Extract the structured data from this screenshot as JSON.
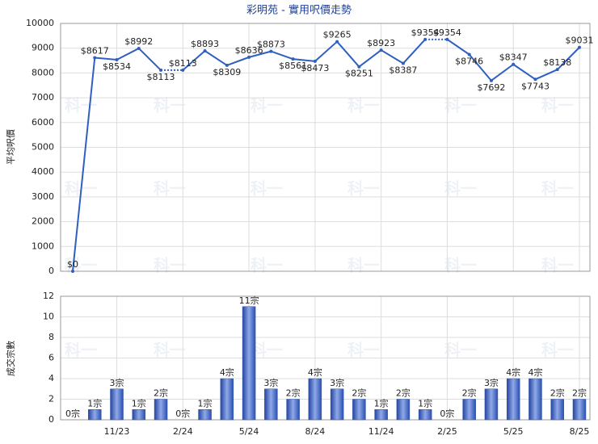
{
  "chart_data": [
    {
      "type": "line",
      "title": "彩明苑 - 實用呎價走勢",
      "watermark": "科一",
      "ylabel": "平均呎價",
      "categories": [
        null,
        null,
        "11/23",
        null,
        null,
        "2/24",
        null,
        null,
        "5/24",
        null,
        null,
        "8/24",
        null,
        null,
        "11/24",
        null,
        null,
        "2/25",
        null,
        null,
        "5/25",
        null,
        null,
        "8/25"
      ],
      "values": [
        0,
        8617,
        8534,
        8992,
        8113,
        8113,
        8893,
        8309,
        8636,
        8873,
        8561,
        8473,
        9265,
        8251,
        8923,
        8387,
        9354,
        9354,
        8746,
        7692,
        8347,
        7743,
        8138,
        9031
      ],
      "value_labels": [
        "$0",
        "$8617",
        "$8534",
        "$8992",
        "$8113",
        "$8113",
        "$8893",
        "$8309",
        "$8636",
        "$8873",
        "$8561",
        "$8473",
        "$9265",
        "$8251",
        "$8923",
        "$8387",
        "$9354",
        "$9354",
        "$8746",
        "$7692",
        "$8347",
        "$7743",
        "$8138",
        "$9031"
      ],
      "color": "#2f5fc0",
      "ylim": [
        0,
        10000
      ],
      "yticks": [
        0,
        1000,
        2000,
        3000,
        4000,
        5000,
        6000,
        7000,
        8000,
        9000,
        10000
      ],
      "grid": true
    },
    {
      "type": "bar",
      "ylabel": "成交宗數",
      "categories": [
        null,
        null,
        "11/23",
        null,
        null,
        "2/24",
        null,
        null,
        "5/24",
        null,
        null,
        "8/24",
        null,
        null,
        "11/24",
        null,
        null,
        "2/25",
        null,
        null,
        "5/25",
        null,
        null,
        "8/25"
      ],
      "values": [
        0,
        1,
        3,
        1,
        2,
        0,
        1,
        4,
        11,
        3,
        2,
        4,
        3,
        2,
        1,
        2,
        1,
        0,
        2,
        3,
        4,
        4,
        2,
        2
      ],
      "value_labels": [
        "0宗",
        "1宗",
        "3宗",
        "1宗",
        "2宗",
        "0宗",
        "1宗",
        "4宗",
        "11宗",
        "3宗",
        "2宗",
        "4宗",
        "3宗",
        "2宗",
        "1宗",
        "2宗",
        "1宗",
        "0宗",
        "2宗",
        "3宗",
        "4宗",
        "4宗",
        "2宗",
        "2宗"
      ],
      "color": "#2f55b0",
      "ylim": [
        0,
        12
      ],
      "yticks": [
        0,
        2,
        4,
        6,
        8,
        10,
        12
      ],
      "grid": true
    }
  ]
}
